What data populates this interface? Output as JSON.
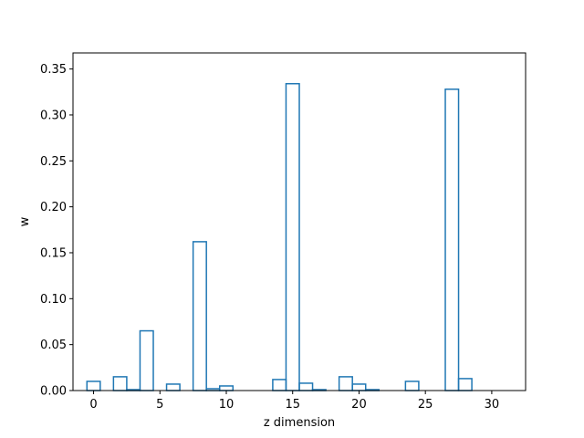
{
  "chart_data": {
    "type": "bar",
    "style": "step-histogram",
    "xlabel": "z dimension",
    "ylabel": "w",
    "xlim": [
      -1.55,
      32.55
    ],
    "ylim": [
      0,
      0.3675
    ],
    "xticks": [
      0,
      5,
      10,
      15,
      20,
      25,
      30
    ],
    "xtick_labels": [
      "0",
      "5",
      "10",
      "15",
      "20",
      "25",
      "30"
    ],
    "yticks": [
      0.0,
      0.05,
      0.1,
      0.15,
      0.2,
      0.25,
      0.3,
      0.35
    ],
    "ytick_labels": [
      "0.00",
      "0.05",
      "0.10",
      "0.15",
      "0.20",
      "0.25",
      "0.30",
      "0.35"
    ],
    "grid": false,
    "color": "#1f77b4",
    "x": [
      0,
      1,
      2,
      3,
      4,
      5,
      6,
      7,
      8,
      9,
      10,
      11,
      12,
      13,
      14,
      15,
      16,
      17,
      18,
      19,
      20,
      21,
      22,
      23,
      24,
      25,
      26,
      27,
      28,
      29,
      30,
      31
    ],
    "values": [
      0.01,
      0.0,
      0.015,
      0.001,
      0.065,
      0.0,
      0.007,
      0.0,
      0.162,
      0.002,
      0.005,
      0.0,
      0.0,
      0.0,
      0.012,
      0.334,
      0.008,
      0.001,
      0.0,
      0.015,
      0.007,
      0.001,
      0.0,
      0.0,
      0.01,
      0.0,
      0.0,
      0.328,
      0.013,
      0.0,
      0.0,
      0.0
    ]
  }
}
